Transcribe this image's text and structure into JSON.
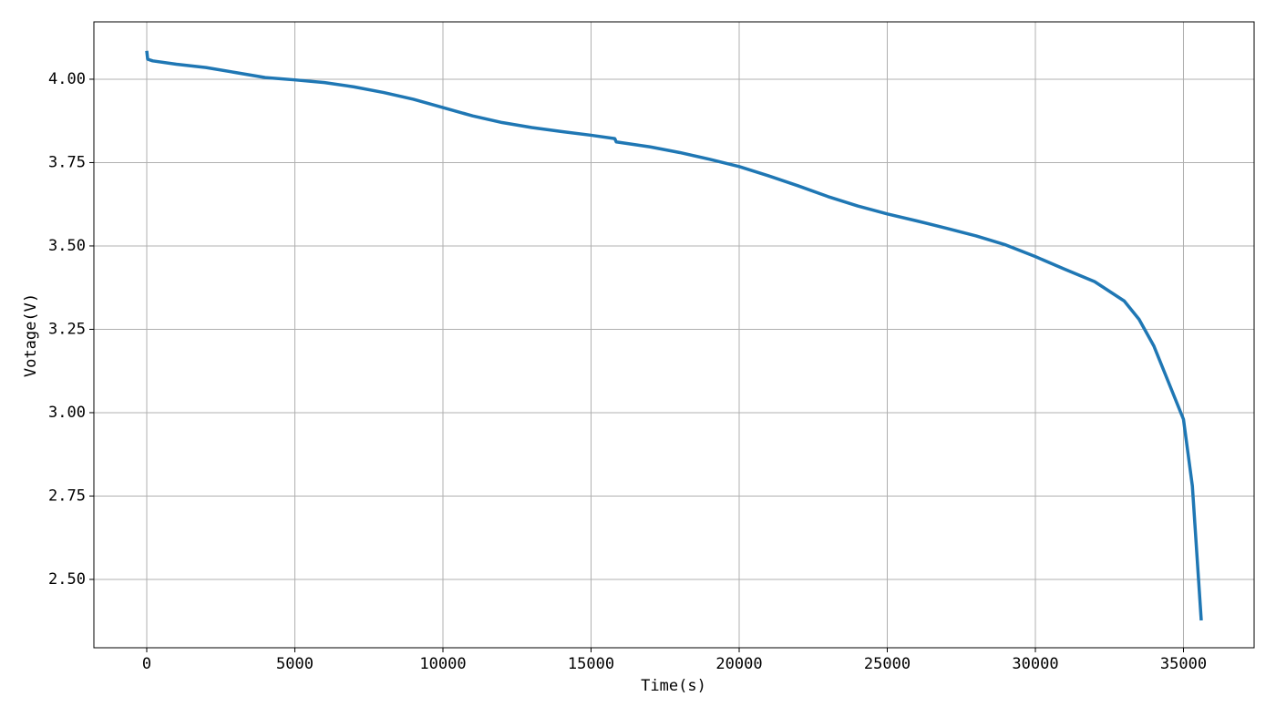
{
  "chart_data": {
    "type": "line",
    "xlabel": "Time(s)",
    "ylabel": "Votage(V)",
    "color": "#1f77b4",
    "grid": true,
    "xlim": [
      -1785,
      37385
    ],
    "ylim": [
      2.295,
      4.172
    ],
    "xticks": [
      0,
      5000,
      10000,
      15000,
      20000,
      25000,
      30000,
      35000
    ],
    "yticks": [
      {
        "value": 2.5,
        "label": "2.50"
      },
      {
        "value": 2.75,
        "label": "2.75"
      },
      {
        "value": 3,
        "label": "3.00"
      },
      {
        "value": 3.25,
        "label": "3.25"
      },
      {
        "value": 3.5,
        "label": "3.50"
      },
      {
        "value": 3.75,
        "label": "3.75"
      },
      {
        "value": 4,
        "label": "4.00"
      }
    ],
    "x": [
      0,
      30,
      200,
      1000,
      2000,
      3000,
      4000,
      5000,
      6000,
      7000,
      8000,
      9000,
      10000,
      11000,
      12000,
      13000,
      14000,
      15000,
      15800,
      15850,
      17000,
      18000,
      19000,
      20000,
      21000,
      22000,
      23000,
      24000,
      25000,
      26000,
      27000,
      28000,
      29000,
      30000,
      31000,
      32000,
      33000,
      33500,
      34000,
      34500,
      35000,
      35300,
      35600
    ],
    "values": [
      4.085,
      4.06,
      4.055,
      4.045,
      4.035,
      4.02,
      4.005,
      3.998,
      3.99,
      3.977,
      3.96,
      3.94,
      3.915,
      3.89,
      3.87,
      3.855,
      3.843,
      3.832,
      3.822,
      3.812,
      3.797,
      3.78,
      3.76,
      3.738,
      3.71,
      3.68,
      3.648,
      3.62,
      3.596,
      3.575,
      3.553,
      3.53,
      3.503,
      3.468,
      3.43,
      3.393,
      3.335,
      3.28,
      3.2,
      3.09,
      2.98,
      2.78,
      2.377
    ]
  }
}
